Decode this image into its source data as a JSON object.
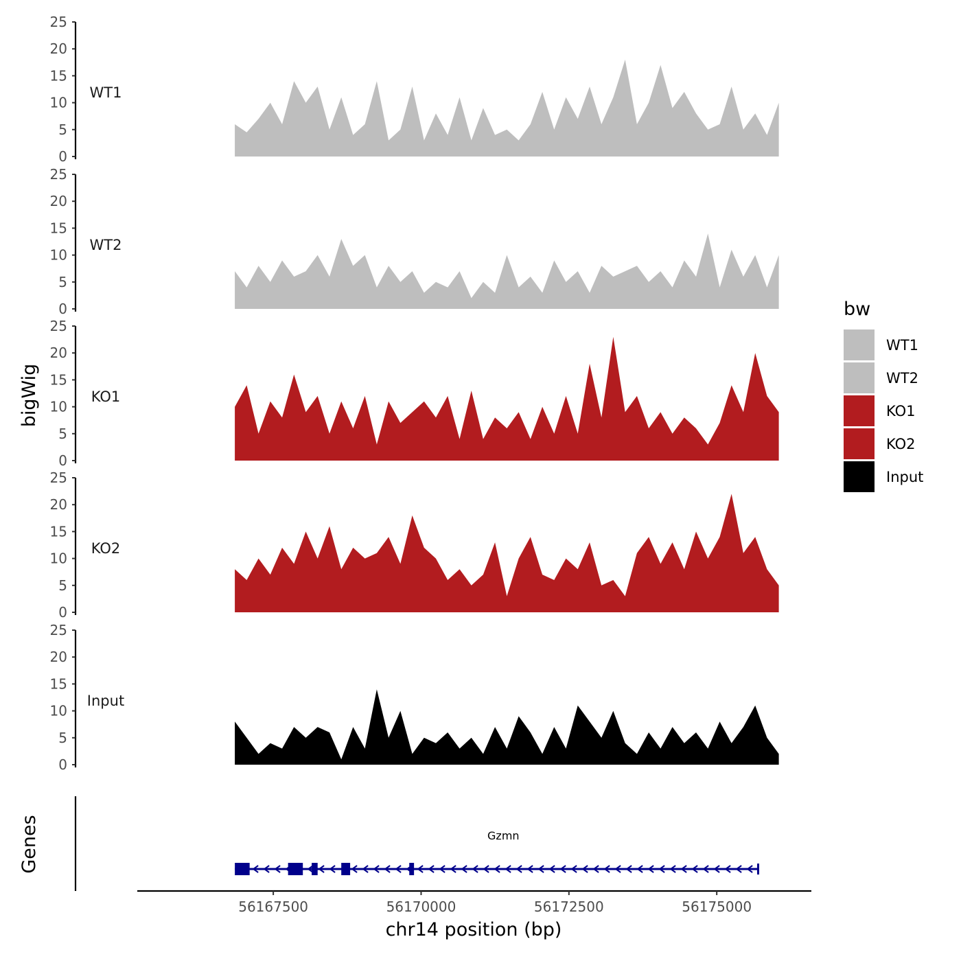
{
  "chart_data": {
    "type": "area",
    "chromosome": "chr14",
    "xlabel": "chr14 position (bp)",
    "ylabel": "bigWig",
    "gene_panel_label": "Genes",
    "xlim": [
      56165200,
      56176600
    ],
    "x_ticks": [
      56167500,
      56170000,
      56172500,
      56175000
    ],
    "x_tick_labels": [
      "56167500",
      "56170000",
      "56172500",
      "56175000"
    ],
    "ylim": [
      0,
      25
    ],
    "y_ticks": [
      0,
      5,
      10,
      15,
      20,
      25
    ],
    "y_tick_labels": [
      "0",
      "5",
      "10",
      "15",
      "20",
      "25"
    ],
    "legend": {
      "title": "bw",
      "entries": [
        {
          "label": "WT1",
          "color": "#bebebe"
        },
        {
          "label": "WT2",
          "color": "#bebebe"
        },
        {
          "label": "KO1",
          "color": "#b21c1f"
        },
        {
          "label": "KO2",
          "color": "#b21c1f"
        },
        {
          "label": "Input",
          "color": "#000000"
        }
      ]
    },
    "series": [
      {
        "name": "WT1",
        "color": "#bebebe",
        "x": [
          56166850,
          56167050,
          56167250,
          56167450,
          56167650,
          56167850,
          56168050,
          56168250,
          56168450,
          56168650,
          56168850,
          56169050,
          56169250,
          56169450,
          56169650,
          56169850,
          56170050,
          56170250,
          56170450,
          56170650,
          56170850,
          56171050,
          56171250,
          56171450,
          56171650,
          56171850,
          56172050,
          56172250,
          56172450,
          56172650,
          56172850,
          56173050,
          56173250,
          56173450,
          56173650,
          56173850,
          56174050,
          56174250,
          56174450,
          56174650,
          56174850,
          56175050,
          56175250,
          56175450,
          56175650,
          56175850,
          56176050
        ],
        "y": [
          6,
          4.5,
          7,
          10,
          6,
          14,
          10,
          13,
          5,
          11,
          4,
          6,
          14,
          3,
          5,
          13,
          3,
          8,
          4,
          11,
          3,
          9,
          4,
          5,
          3,
          6,
          12,
          5,
          11,
          7,
          13,
          6,
          11,
          18,
          6,
          10,
          17,
          9,
          12,
          8,
          5,
          6,
          13,
          5,
          8,
          4,
          10
        ]
      },
      {
        "name": "WT2",
        "color": "#bebebe",
        "x": [
          56166850,
          56167050,
          56167250,
          56167450,
          56167650,
          56167850,
          56168050,
          56168250,
          56168450,
          56168650,
          56168850,
          56169050,
          56169250,
          56169450,
          56169650,
          56169850,
          56170050,
          56170250,
          56170450,
          56170650,
          56170850,
          56171050,
          56171250,
          56171450,
          56171650,
          56171850,
          56172050,
          56172250,
          56172450,
          56172650,
          56172850,
          56173050,
          56173250,
          56173450,
          56173650,
          56173850,
          56174050,
          56174250,
          56174450,
          56174650,
          56174850,
          56175050,
          56175250,
          56175450,
          56175650,
          56175850,
          56176050
        ],
        "y": [
          7,
          4,
          8,
          5,
          9,
          6,
          7,
          10,
          6,
          13,
          8,
          10,
          4,
          8,
          5,
          7,
          3,
          5,
          4,
          7,
          2,
          5,
          3,
          10,
          4,
          6,
          3,
          9,
          5,
          7,
          3,
          8,
          6,
          7,
          8,
          5,
          7,
          4,
          9,
          6,
          14,
          4,
          11,
          6,
          10,
          4,
          10
        ]
      },
      {
        "name": "KO1",
        "color": "#b21c1f",
        "x": [
          56166850,
          56167050,
          56167250,
          56167450,
          56167650,
          56167850,
          56168050,
          56168250,
          56168450,
          56168650,
          56168850,
          56169050,
          56169250,
          56169450,
          56169650,
          56169850,
          56170050,
          56170250,
          56170450,
          56170650,
          56170850,
          56171050,
          56171250,
          56171450,
          56171650,
          56171850,
          56172050,
          56172250,
          56172450,
          56172650,
          56172850,
          56173050,
          56173250,
          56173450,
          56173650,
          56173850,
          56174050,
          56174250,
          56174450,
          56174650,
          56174850,
          56175050,
          56175250,
          56175450,
          56175650,
          56175850,
          56176050
        ],
        "y": [
          10,
          14,
          5,
          11,
          8,
          16,
          9,
          12,
          5,
          11,
          6,
          12,
          3,
          11,
          7,
          9,
          11,
          8,
          12,
          4,
          13,
          4,
          8,
          6,
          9,
          4,
          10,
          5,
          12,
          5,
          18,
          8,
          23,
          9,
          12,
          6,
          9,
          5,
          8,
          6,
          3,
          7,
          14,
          9,
          20,
          12,
          9
        ]
      },
      {
        "name": "KO2",
        "color": "#b21c1f",
        "x": [
          56166850,
          56167050,
          56167250,
          56167450,
          56167650,
          56167850,
          56168050,
          56168250,
          56168450,
          56168650,
          56168850,
          56169050,
          56169250,
          56169450,
          56169650,
          56169850,
          56170050,
          56170250,
          56170450,
          56170650,
          56170850,
          56171050,
          56171250,
          56171450,
          56171650,
          56171850,
          56172050,
          56172250,
          56172450,
          56172650,
          56172850,
          56173050,
          56173250,
          56173450,
          56173650,
          56173850,
          56174050,
          56174250,
          56174450,
          56174650,
          56174850,
          56175050,
          56175250,
          56175450,
          56175650,
          56175850,
          56176050
        ],
        "y": [
          8,
          6,
          10,
          7,
          12,
          9,
          15,
          10,
          16,
          8,
          12,
          10,
          11,
          14,
          9,
          18,
          12,
          10,
          6,
          8,
          5,
          7,
          13,
          3,
          10,
          14,
          7,
          6,
          10,
          8,
          13,
          5,
          6,
          3,
          11,
          14,
          9,
          13,
          8,
          15,
          10,
          14,
          22,
          11,
          14,
          8,
          5
        ]
      },
      {
        "name": "Input",
        "color": "#000000",
        "x": [
          56166850,
          56167050,
          56167250,
          56167450,
          56167650,
          56167850,
          56168050,
          56168250,
          56168450,
          56168650,
          56168850,
          56169050,
          56169250,
          56169450,
          56169650,
          56169850,
          56170050,
          56170250,
          56170450,
          56170650,
          56170850,
          56171050,
          56171250,
          56171450,
          56171650,
          56171850,
          56172050,
          56172250,
          56172450,
          56172650,
          56172850,
          56173050,
          56173250,
          56173450,
          56173650,
          56173850,
          56174050,
          56174250,
          56174450,
          56174650,
          56174850,
          56175050,
          56175250,
          56175450,
          56175650,
          56175850,
          56176050
        ],
        "y": [
          8,
          5,
          2,
          4,
          3,
          7,
          5,
          7,
          6,
          1,
          7,
          3,
          14,
          5,
          10,
          2,
          5,
          4,
          6,
          3,
          5,
          2,
          7,
          3,
          9,
          6,
          2,
          7,
          3,
          11,
          8,
          5,
          10,
          4,
          2,
          6,
          3,
          7,
          4,
          6,
          3,
          8,
          4,
          7,
          11,
          5,
          2
        ]
      }
    ],
    "genes": [
      {
        "name": "Gzmn",
        "start": 56166850,
        "end": 56175700,
        "strand": "-",
        "exons": [
          [
            56166850,
            56167100
          ],
          [
            56167750,
            56168000
          ],
          [
            56168150,
            56168250
          ],
          [
            56168650,
            56168800
          ],
          [
            56169800,
            56169880
          ]
        ]
      }
    ]
  }
}
